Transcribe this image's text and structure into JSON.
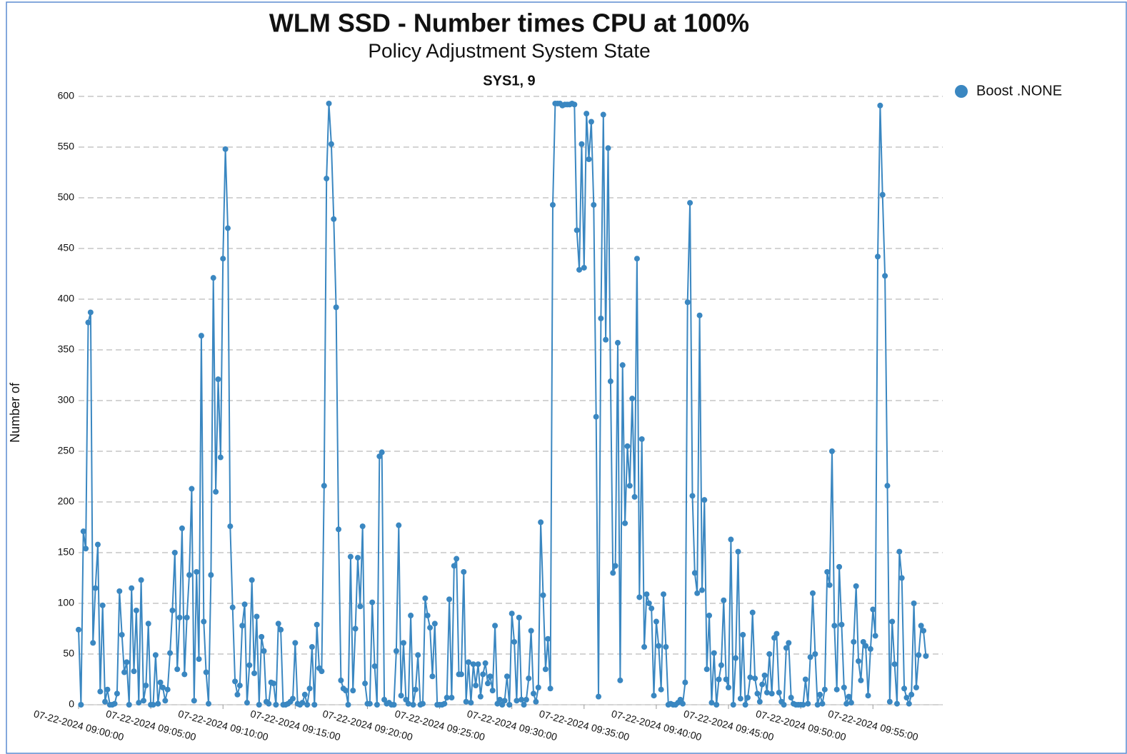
{
  "chart_data": {
    "type": "line",
    "title": "WLM SSD - Number times CPU at 100%",
    "subtitle": "Policy Adjustment System State",
    "panel_title": "SYS1, 9",
    "y_label": "Number of",
    "legend_position": "top-right",
    "grid": true,
    "ylim": [
      0,
      600
    ],
    "yticks": [
      0,
      50,
      100,
      150,
      200,
      250,
      300,
      350,
      400,
      450,
      500,
      550,
      600
    ],
    "xlim": [
      "07-22-2024 09:00:00",
      "07-22-2024 09:59:50"
    ],
    "xticks": [
      "07-22-2024 09:00:00",
      "07-22-2024 09:05:00",
      "07-22-2024 09:10:00",
      "07-22-2024 09:15:00",
      "07-22-2024 09:20:00",
      "07-22-2024 09:25:00",
      "07-22-2024 09:30:00",
      "07-22-2024 09:35:00",
      "07-22-2024 09:40:00",
      "07-22-2024 09:45:00",
      "07-22-2024 09:50:00",
      "07-22-2024 09:55:00"
    ],
    "x": [
      "07-22-2024 09:00:00",
      "07-22-2024 09:00:10",
      "07-22-2024 09:00:20",
      "07-22-2024 09:00:30",
      "07-22-2024 09:00:40",
      "07-22-2024 09:00:50",
      "07-22-2024 09:01:00",
      "07-22-2024 09:01:10",
      "07-22-2024 09:01:20",
      "07-22-2024 09:01:30",
      "07-22-2024 09:01:40",
      "07-22-2024 09:01:50",
      "07-22-2024 09:02:00",
      "07-22-2024 09:02:10",
      "07-22-2024 09:02:20",
      "07-22-2024 09:02:30",
      "07-22-2024 09:02:40",
      "07-22-2024 09:02:50",
      "07-22-2024 09:03:00",
      "07-22-2024 09:03:10",
      "07-22-2024 09:03:20",
      "07-22-2024 09:03:30",
      "07-22-2024 09:03:40",
      "07-22-2024 09:03:50",
      "07-22-2024 09:04:00",
      "07-22-2024 09:04:10",
      "07-22-2024 09:04:20",
      "07-22-2024 09:04:30",
      "07-22-2024 09:04:40",
      "07-22-2024 09:04:50",
      "07-22-2024 09:05:00",
      "07-22-2024 09:05:10",
      "07-22-2024 09:05:20",
      "07-22-2024 09:05:30",
      "07-22-2024 09:05:40",
      "07-22-2024 09:05:50",
      "07-22-2024 09:06:00",
      "07-22-2024 09:06:10",
      "07-22-2024 09:06:20",
      "07-22-2024 09:06:30",
      "07-22-2024 09:06:40",
      "07-22-2024 09:06:50",
      "07-22-2024 09:07:00",
      "07-22-2024 09:07:10",
      "07-22-2024 09:07:20",
      "07-22-2024 09:07:30",
      "07-22-2024 09:07:40",
      "07-22-2024 09:07:50",
      "07-22-2024 09:08:00",
      "07-22-2024 09:08:10",
      "07-22-2024 09:08:20",
      "07-22-2024 09:08:30",
      "07-22-2024 09:08:40",
      "07-22-2024 09:08:50",
      "07-22-2024 09:09:00",
      "07-22-2024 09:09:10",
      "07-22-2024 09:09:20",
      "07-22-2024 09:09:30",
      "07-22-2024 09:09:40",
      "07-22-2024 09:09:50",
      "07-22-2024 09:10:00",
      "07-22-2024 09:10:10",
      "07-22-2024 09:10:20",
      "07-22-2024 09:10:30",
      "07-22-2024 09:10:40",
      "07-22-2024 09:10:50",
      "07-22-2024 09:11:00",
      "07-22-2024 09:11:10",
      "07-22-2024 09:11:20",
      "07-22-2024 09:11:30",
      "07-22-2024 09:11:40",
      "07-22-2024 09:11:50",
      "07-22-2024 09:12:00",
      "07-22-2024 09:12:10",
      "07-22-2024 09:12:20",
      "07-22-2024 09:12:30",
      "07-22-2024 09:12:40",
      "07-22-2024 09:12:50",
      "07-22-2024 09:13:00",
      "07-22-2024 09:13:10",
      "07-22-2024 09:13:20",
      "07-22-2024 09:13:30",
      "07-22-2024 09:13:40",
      "07-22-2024 09:13:50",
      "07-22-2024 09:14:00",
      "07-22-2024 09:14:10",
      "07-22-2024 09:14:20",
      "07-22-2024 09:14:30",
      "07-22-2024 09:14:40",
      "07-22-2024 09:14:50",
      "07-22-2024 09:15:00",
      "07-22-2024 09:15:10",
      "07-22-2024 09:15:20",
      "07-22-2024 09:15:30",
      "07-22-2024 09:15:40",
      "07-22-2024 09:15:50",
      "07-22-2024 09:16:00",
      "07-22-2024 09:16:10",
      "07-22-2024 09:16:20",
      "07-22-2024 09:16:30",
      "07-22-2024 09:16:40",
      "07-22-2024 09:16:50",
      "07-22-2024 09:17:00",
      "07-22-2024 09:17:10",
      "07-22-2024 09:17:20",
      "07-22-2024 09:17:30",
      "07-22-2024 09:17:40",
      "07-22-2024 09:17:50",
      "07-22-2024 09:18:00",
      "07-22-2024 09:18:10",
      "07-22-2024 09:18:20",
      "07-22-2024 09:18:30",
      "07-22-2024 09:18:40",
      "07-22-2024 09:18:50",
      "07-22-2024 09:19:00",
      "07-22-2024 09:19:10",
      "07-22-2024 09:19:20",
      "07-22-2024 09:19:30",
      "07-22-2024 09:19:40",
      "07-22-2024 09:19:50",
      "07-22-2024 09:20:00",
      "07-22-2024 09:20:10",
      "07-22-2024 09:20:20",
      "07-22-2024 09:20:30",
      "07-22-2024 09:20:40",
      "07-22-2024 09:20:50",
      "07-22-2024 09:21:00",
      "07-22-2024 09:21:10",
      "07-22-2024 09:21:20",
      "07-22-2024 09:21:30",
      "07-22-2024 09:21:40",
      "07-22-2024 09:21:50",
      "07-22-2024 09:22:00",
      "07-22-2024 09:22:10",
      "07-22-2024 09:22:20",
      "07-22-2024 09:22:30",
      "07-22-2024 09:22:40",
      "07-22-2024 09:22:50",
      "07-22-2024 09:23:00",
      "07-22-2024 09:23:10",
      "07-22-2024 09:23:20",
      "07-22-2024 09:23:30",
      "07-22-2024 09:23:40",
      "07-22-2024 09:23:50",
      "07-22-2024 09:24:00",
      "07-22-2024 09:24:10",
      "07-22-2024 09:24:20",
      "07-22-2024 09:24:30",
      "07-22-2024 09:24:40",
      "07-22-2024 09:24:50",
      "07-22-2024 09:25:00",
      "07-22-2024 09:25:10",
      "07-22-2024 09:25:20",
      "07-22-2024 09:25:30",
      "07-22-2024 09:25:40",
      "07-22-2024 09:25:50",
      "07-22-2024 09:26:00",
      "07-22-2024 09:26:10",
      "07-22-2024 09:26:20",
      "07-22-2024 09:26:30",
      "07-22-2024 09:26:40",
      "07-22-2024 09:26:50",
      "07-22-2024 09:27:00",
      "07-22-2024 09:27:10",
      "07-22-2024 09:27:20",
      "07-22-2024 09:27:30",
      "07-22-2024 09:27:40",
      "07-22-2024 09:27:50",
      "07-22-2024 09:28:00",
      "07-22-2024 09:28:10",
      "07-22-2024 09:28:20",
      "07-22-2024 09:28:30",
      "07-22-2024 09:28:40",
      "07-22-2024 09:28:50",
      "07-22-2024 09:29:00",
      "07-22-2024 09:29:10",
      "07-22-2024 09:29:20",
      "07-22-2024 09:29:30",
      "07-22-2024 09:29:40",
      "07-22-2024 09:29:50",
      "07-22-2024 09:30:00",
      "07-22-2024 09:30:10",
      "07-22-2024 09:30:20",
      "07-22-2024 09:30:30",
      "07-22-2024 09:30:40",
      "07-22-2024 09:30:50",
      "07-22-2024 09:31:00",
      "07-22-2024 09:31:10",
      "07-22-2024 09:31:20",
      "07-22-2024 09:31:30",
      "07-22-2024 09:31:40",
      "07-22-2024 09:31:50",
      "07-22-2024 09:32:00",
      "07-22-2024 09:32:10",
      "07-22-2024 09:32:20",
      "07-22-2024 09:32:30",
      "07-22-2024 09:32:40",
      "07-22-2024 09:32:50",
      "07-22-2024 09:33:00",
      "07-22-2024 09:33:10",
      "07-22-2024 09:33:20",
      "07-22-2024 09:33:30",
      "07-22-2024 09:33:40",
      "07-22-2024 09:33:50",
      "07-22-2024 09:34:00",
      "07-22-2024 09:34:10",
      "07-22-2024 09:34:20",
      "07-22-2024 09:34:30",
      "07-22-2024 09:34:40",
      "07-22-2024 09:34:50",
      "07-22-2024 09:35:00",
      "07-22-2024 09:35:10",
      "07-22-2024 09:35:20",
      "07-22-2024 09:35:30",
      "07-22-2024 09:35:40",
      "07-22-2024 09:35:50",
      "07-22-2024 09:36:00",
      "07-22-2024 09:36:10",
      "07-22-2024 09:36:20",
      "07-22-2024 09:36:30",
      "07-22-2024 09:36:40",
      "07-22-2024 09:36:50",
      "07-22-2024 09:37:00",
      "07-22-2024 09:37:10",
      "07-22-2024 09:37:20",
      "07-22-2024 09:37:30",
      "07-22-2024 09:37:40",
      "07-22-2024 09:37:50",
      "07-22-2024 09:38:00",
      "07-22-2024 09:38:10",
      "07-22-2024 09:38:20",
      "07-22-2024 09:38:30",
      "07-22-2024 09:38:40",
      "07-22-2024 09:38:50",
      "07-22-2024 09:39:00",
      "07-22-2024 09:39:10",
      "07-22-2024 09:39:20",
      "07-22-2024 09:39:30",
      "07-22-2024 09:39:40",
      "07-22-2024 09:39:50",
      "07-22-2024 09:40:00",
      "07-22-2024 09:40:10",
      "07-22-2024 09:40:20",
      "07-22-2024 09:40:30",
      "07-22-2024 09:40:40",
      "07-22-2024 09:40:50",
      "07-22-2024 09:41:00",
      "07-22-2024 09:41:10",
      "07-22-2024 09:41:20",
      "07-22-2024 09:41:30",
      "07-22-2024 09:41:40",
      "07-22-2024 09:41:50",
      "07-22-2024 09:42:00",
      "07-22-2024 09:42:10",
      "07-22-2024 09:42:20",
      "07-22-2024 09:42:30",
      "07-22-2024 09:42:40",
      "07-22-2024 09:42:50",
      "07-22-2024 09:43:00",
      "07-22-2024 09:43:10",
      "07-22-2024 09:43:20",
      "07-22-2024 09:43:30",
      "07-22-2024 09:43:40",
      "07-22-2024 09:43:50",
      "07-22-2024 09:44:00",
      "07-22-2024 09:44:10",
      "07-22-2024 09:44:20",
      "07-22-2024 09:44:30",
      "07-22-2024 09:44:40",
      "07-22-2024 09:44:50",
      "07-22-2024 09:45:00",
      "07-22-2024 09:45:10",
      "07-22-2024 09:45:20",
      "07-22-2024 09:45:30",
      "07-22-2024 09:45:40",
      "07-22-2024 09:45:50",
      "07-22-2024 09:46:00",
      "07-22-2024 09:46:10",
      "07-22-2024 09:46:20",
      "07-22-2024 09:46:30",
      "07-22-2024 09:46:40",
      "07-22-2024 09:46:50",
      "07-22-2024 09:47:00",
      "07-22-2024 09:47:10",
      "07-22-2024 09:47:20",
      "07-22-2024 09:47:30",
      "07-22-2024 09:47:40",
      "07-22-2024 09:47:50",
      "07-22-2024 09:48:00",
      "07-22-2024 09:48:10",
      "07-22-2024 09:48:20",
      "07-22-2024 09:48:30",
      "07-22-2024 09:48:40",
      "07-22-2024 09:48:50",
      "07-22-2024 09:49:00",
      "07-22-2024 09:49:10",
      "07-22-2024 09:49:20",
      "07-22-2024 09:49:30",
      "07-22-2024 09:49:40",
      "07-22-2024 09:49:50",
      "07-22-2024 09:50:00",
      "07-22-2024 09:50:10",
      "07-22-2024 09:50:20",
      "07-22-2024 09:50:30",
      "07-22-2024 09:50:40",
      "07-22-2024 09:50:50",
      "07-22-2024 09:51:00",
      "07-22-2024 09:51:10",
      "07-22-2024 09:51:20",
      "07-22-2024 09:51:30",
      "07-22-2024 09:51:40",
      "07-22-2024 09:51:50",
      "07-22-2024 09:52:00",
      "07-22-2024 09:52:10",
      "07-22-2024 09:52:20",
      "07-22-2024 09:52:30",
      "07-22-2024 09:52:40",
      "07-22-2024 09:52:50",
      "07-22-2024 09:53:00",
      "07-22-2024 09:53:10",
      "07-22-2024 09:53:20",
      "07-22-2024 09:53:30",
      "07-22-2024 09:53:40",
      "07-22-2024 09:53:50",
      "07-22-2024 09:54:00",
      "07-22-2024 09:54:10",
      "07-22-2024 09:54:20",
      "07-22-2024 09:54:30",
      "07-22-2024 09:54:40",
      "07-22-2024 09:54:50",
      "07-22-2024 09:55:00",
      "07-22-2024 09:55:10",
      "07-22-2024 09:55:20",
      "07-22-2024 09:55:30",
      "07-22-2024 09:55:40",
      "07-22-2024 09:55:50",
      "07-22-2024 09:56:00",
      "07-22-2024 09:56:10",
      "07-22-2024 09:56:20",
      "07-22-2024 09:56:30",
      "07-22-2024 09:56:40",
      "07-22-2024 09:56:50",
      "07-22-2024 09:57:00",
      "07-22-2024 09:57:10",
      "07-22-2024 09:57:20",
      "07-22-2024 09:57:30",
      "07-22-2024 09:57:40",
      "07-22-2024 09:57:50",
      "07-22-2024 09:58:00",
      "07-22-2024 09:58:10",
      "07-22-2024 09:58:20",
      "07-22-2024 09:58:30",
      "07-22-2024 09:58:40"
    ],
    "series": [
      {
        "name": "Boost .NONE",
        "color": "#3a87c1",
        "values": [
          74,
          0,
          171,
          154,
          377,
          387,
          61,
          115,
          158,
          13,
          98,
          3,
          15,
          0,
          0,
          1,
          11,
          112,
          69,
          32,
          42,
          0,
          115,
          33,
          93,
          2,
          123,
          4,
          19,
          80,
          0,
          0,
          49,
          1,
          22,
          17,
          4,
          15,
          51,
          93,
          150,
          35,
          86,
          174,
          30,
          86,
          128,
          213,
          4,
          131,
          45,
          364,
          82,
          32,
          1,
          128,
          421,
          210,
          321,
          244,
          440,
          548,
          470,
          176,
          96,
          23,
          10,
          19,
          78,
          99,
          2,
          39,
          123,
          31,
          87,
          0,
          67,
          53,
          3,
          1,
          22,
          21,
          0,
          80,
          74,
          0,
          0,
          1,
          3,
          6,
          61,
          1,
          0,
          2,
          10,
          0,
          16,
          57,
          0,
          79,
          36,
          33,
          216,
          519,
          593,
          553,
          479,
          392,
          173,
          24,
          16,
          14,
          0,
          146,
          14,
          75,
          145,
          97,
          176,
          21,
          1,
          1,
          101,
          38,
          0,
          245,
          249,
          5,
          1,
          2,
          0,
          0,
          53,
          177,
          9,
          61,
          5,
          1,
          88,
          0,
          15,
          49,
          0,
          1,
          105,
          88,
          76,
          28,
          80,
          0,
          0,
          0,
          1,
          7,
          104,
          7,
          137,
          144,
          30,
          30,
          131,
          3,
          42,
          2,
          40,
          19,
          40,
          8,
          30,
          41,
          21,
          28,
          14,
          78,
          1,
          5,
          0,
          4,
          28,
          0,
          90,
          62,
          4,
          86,
          5,
          0,
          5,
          26,
          73,
          11,
          3,
          17,
          180,
          108,
          35,
          65,
          16,
          493,
          593,
          593,
          593,
          591,
          592,
          592,
          592,
          593,
          592,
          468,
          429,
          553,
          431,
          583,
          538,
          575,
          493,
          284,
          8,
          381,
          582,
          360,
          549,
          319,
          130,
          137,
          357,
          24,
          335,
          179,
          255,
          216,
          302,
          205,
          440,
          106,
          262,
          57,
          109,
          100,
          95,
          9,
          82,
          58,
          15,
          109,
          57,
          0,
          1,
          0,
          0,
          2,
          5,
          1,
          22,
          397,
          495,
          206,
          130,
          110,
          384,
          113,
          202,
          35,
          88,
          2,
          51,
          0,
          25,
          39,
          103,
          25,
          17,
          163,
          0,
          46,
          151,
          6,
          69,
          0,
          7,
          27,
          91,
          26,
          11,
          3,
          20,
          29,
          12,
          50,
          11,
          66,
          70,
          12,
          3,
          0,
          56,
          61,
          7,
          1,
          0,
          0,
          0,
          0,
          25,
          1,
          47,
          110,
          50,
          0,
          10,
          1,
          15,
          131,
          118,
          250,
          78,
          15,
          136,
          79,
          17,
          1,
          8,
          2,
          62,
          117,
          43,
          24,
          62,
          58,
          9,
          55,
          94,
          68,
          442,
          591,
          503,
          423,
          216,
          3,
          82,
          40,
          1,
          151,
          125,
          16,
          7,
          1,
          10,
          100,
          17,
          49,
          78,
          73,
          48
        ]
      }
    ]
  }
}
